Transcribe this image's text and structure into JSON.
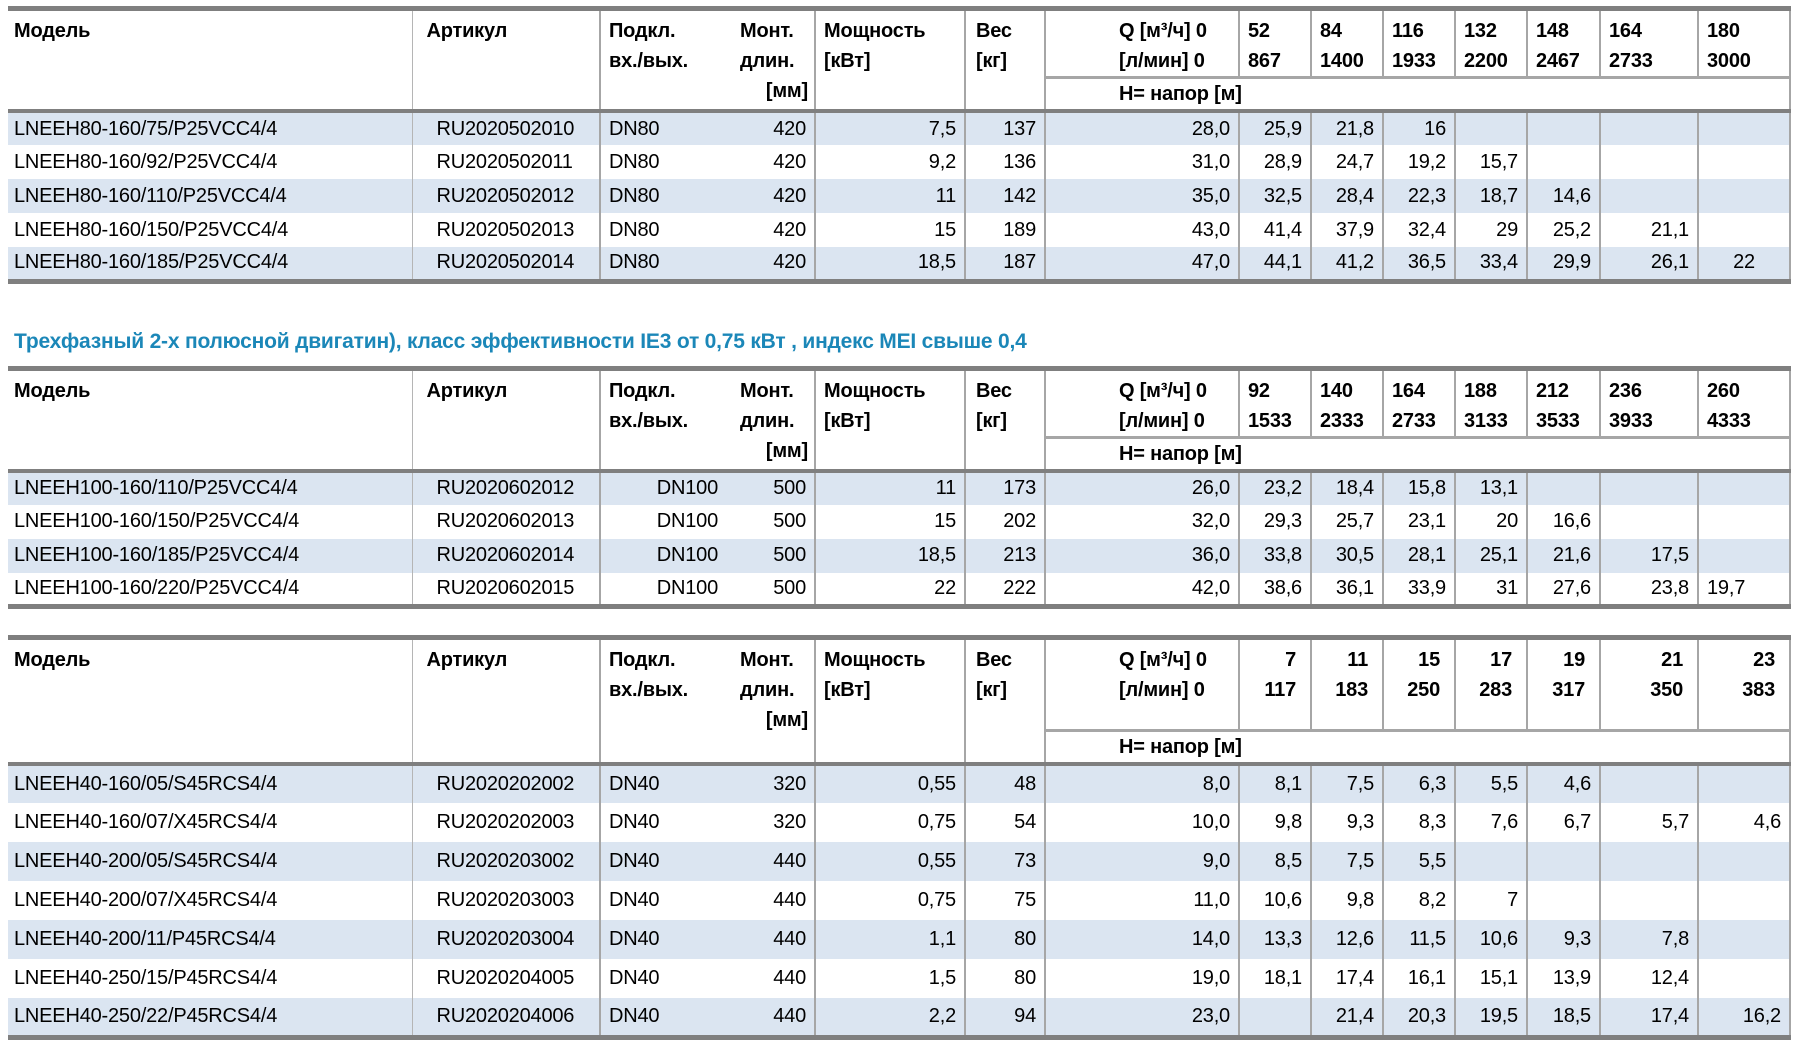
{
  "colors": {
    "heading_blue": "#1b87b8",
    "row_alt": "#dbe5f1",
    "border": "#a6a6a6",
    "border_dark": "#7f7f7f",
    "text": "#000000"
  },
  "section_heading": {
    "text": "Трехфазный 2-х полюсной двигатин), класс эффективности IE3 от 0,75 кВт ,  индекс MEI свыше 0,4"
  },
  "header_labels": {
    "model": "Модель",
    "article": "Артикул",
    "dn_lines": [
      "Подкл.",
      "вх./вых."
    ],
    "len_lines": [
      "Монт.",
      "длин.",
      "[мм]"
    ],
    "power_lines": [
      "Мощность",
      "[кВт]"
    ],
    "weight_lines": [
      "Вес",
      "[кг]"
    ],
    "q_label": "Q [м³/ч] 0",
    "lmin_label": "[л/мин] 0",
    "h_label": "H= напор [м]"
  },
  "tables": [
    {
      "name": "lneeh80-160",
      "q_m3h": [
        "52",
        "84",
        "116",
        "132",
        "148",
        "164",
        "180"
      ],
      "q_lmin": [
        "867",
        "1400",
        "1933",
        "2200",
        "2467",
        "2733",
        "3000"
      ],
      "rows": [
        {
          "model": "LNEEH80-160/75/P25VCC4/4",
          "article": "RU2020502010",
          "dn": "DN80",
          "mount_len": "420",
          "power": "7,5",
          "weight": "137",
          "h0": "28,0",
          "h": [
            "25,9",
            "21,8",
            "16",
            "",
            "",
            "",
            ""
          ]
        },
        {
          "model": "LNEEH80-160/92/P25VCC4/4",
          "article": "RU2020502011",
          "dn": "DN80",
          "mount_len": "420",
          "power": "9,2",
          "weight": "136",
          "h0": "31,0",
          "h": [
            "28,9",
            "24,7",
            "19,2",
            "15,7",
            "",
            "",
            ""
          ]
        },
        {
          "model": "LNEEH80-160/110/P25VCC4/4",
          "article": "RU2020502012",
          "dn": "DN80",
          "mount_len": "420",
          "power": "11",
          "weight": "142",
          "h0": "35,0",
          "h": [
            "32,5",
            "28,4",
            "22,3",
            "18,7",
            "14,6",
            "",
            ""
          ]
        },
        {
          "model": "LNEEH80-160/150/P25VCC4/4",
          "article": "RU2020502013",
          "dn": "DN80",
          "mount_len": "420",
          "power": "15",
          "weight": "189",
          "h0": "43,0",
          "h": [
            "41,4",
            "37,9",
            "32,4",
            "29",
            "25,2",
            "21,1",
            ""
          ]
        },
        {
          "model": "LNEEH80-160/185/P25VCC4/4",
          "article": "RU2020502014",
          "dn": "DN80",
          "mount_len": "420",
          "power": "18,5",
          "weight": "187",
          "h0": "47,0",
          "h": [
            "44,1",
            "41,2",
            "36,5",
            "33,4",
            "29,9",
            "26,1",
            "22"
          ]
        }
      ]
    },
    {
      "name": "lneeh100-160",
      "q_m3h": [
        "92",
        "140",
        "164",
        "188",
        "212",
        "236",
        "260"
      ],
      "q_lmin": [
        "1533",
        "2333",
        "2733",
        "3133",
        "3533",
        "3933",
        "4333"
      ],
      "rows": [
        {
          "model": "LNEEH100-160/110/P25VCC4/4",
          "article": "RU2020602012",
          "dn": "DN100",
          "mount_len": "500",
          "power": "11",
          "weight": "173",
          "h0": "26,0",
          "h": [
            "23,2",
            "18,4",
            "15,8",
            "13,1",
            "",
            "",
            ""
          ]
        },
        {
          "model": "LNEEH100-160/150/P25VCC4/4",
          "article": "RU2020602013",
          "dn": "DN100",
          "mount_len": "500",
          "power": "15",
          "weight": "202",
          "h0": "32,0",
          "h": [
            "29,3",
            "25,7",
            "23,1",
            "20",
            "16,6",
            "",
            ""
          ]
        },
        {
          "model": "LNEEH100-160/185/P25VCC4/4",
          "article": "RU2020602014",
          "dn": "DN100",
          "mount_len": "500",
          "power": "18,5",
          "weight": "213",
          "h0": "36,0",
          "h": [
            "33,8",
            "30,5",
            "28,1",
            "25,1",
            "21,6",
            "17,5",
            ""
          ]
        },
        {
          "model": "LNEEH100-160/220/P25VCC4/4",
          "article": "RU2020602015",
          "dn": "DN100",
          "mount_len": "500",
          "power": "22",
          "weight": "222",
          "h0": "42,0",
          "h": [
            "38,6",
            "36,1",
            "33,9",
            "31",
            "27,6",
            "23,8",
            "19,7"
          ]
        }
      ]
    },
    {
      "name": "lneeh40",
      "q_m3h": [
        "7",
        "11",
        "15",
        "17",
        "19",
        "21",
        "23"
      ],
      "q_lmin": [
        "117",
        "183",
        "250",
        "283",
        "317",
        "350",
        "383"
      ],
      "rows": [
        {
          "model": "LNEEH40-160/05/S45RCS4/4",
          "article": "RU2020202002",
          "dn": "DN40",
          "mount_len": "320",
          "power": "0,55",
          "weight": "48",
          "h0": "8,0",
          "h": [
            "8,1",
            "7,5",
            "6,3",
            "5,5",
            "4,6",
            "",
            ""
          ]
        },
        {
          "model": "LNEEH40-160/07/X45RCS4/4",
          "article": "RU2020202003",
          "dn": "DN40",
          "mount_len": "320",
          "power": "0,75",
          "weight": "54",
          "h0": "10,0",
          "h": [
            "9,8",
            "9,3",
            "8,3",
            "7,6",
            "6,7",
            "5,7",
            "4,6"
          ]
        },
        {
          "model": "LNEEH40-200/05/S45RCS4/4",
          "article": "RU2020203002",
          "dn": "DN40",
          "mount_len": "440",
          "power": "0,55",
          "weight": "73",
          "h0": "9,0",
          "h": [
            "8,5",
            "7,5",
            "5,5",
            "",
            "",
            "",
            ""
          ]
        },
        {
          "model": "LNEEH40-200/07/X45RCS4/4",
          "article": "RU2020203003",
          "dn": "DN40",
          "mount_len": "440",
          "power": "0,75",
          "weight": "75",
          "h0": "11,0",
          "h": [
            "10,6",
            "9,8",
            "8,2",
            "7",
            "",
            "",
            ""
          ]
        },
        {
          "model": "LNEEH40-200/11/P45RCS4/4",
          "article": "RU2020203004",
          "dn": "DN40",
          "mount_len": "440",
          "power": "1,1",
          "weight": "80",
          "h0": "14,0",
          "h": [
            "13,3",
            "12,6",
            "11,5",
            "10,6",
            "9,3",
            "7,8",
            ""
          ]
        },
        {
          "model": "LNEEH40-250/15/P45RCS4/4",
          "article": "RU2020204005",
          "dn": "DN40",
          "mount_len": "440",
          "power": "1,5",
          "weight": "80",
          "h0": "19,0",
          "h": [
            "18,1",
            "17,4",
            "16,1",
            "15,1",
            "13,9",
            "12,4",
            ""
          ]
        },
        {
          "model": "LNEEH40-250/22/P45RCS4/4",
          "article": "RU2020204006",
          "dn": "DN40",
          "mount_len": "440",
          "power": "2,2",
          "weight": "94",
          "h0": "23,0",
          "h": [
            "",
            "21,4",
            "20,3",
            "19,5",
            "18,5",
            "17,4",
            "16,2"
          ]
        }
      ]
    }
  ]
}
